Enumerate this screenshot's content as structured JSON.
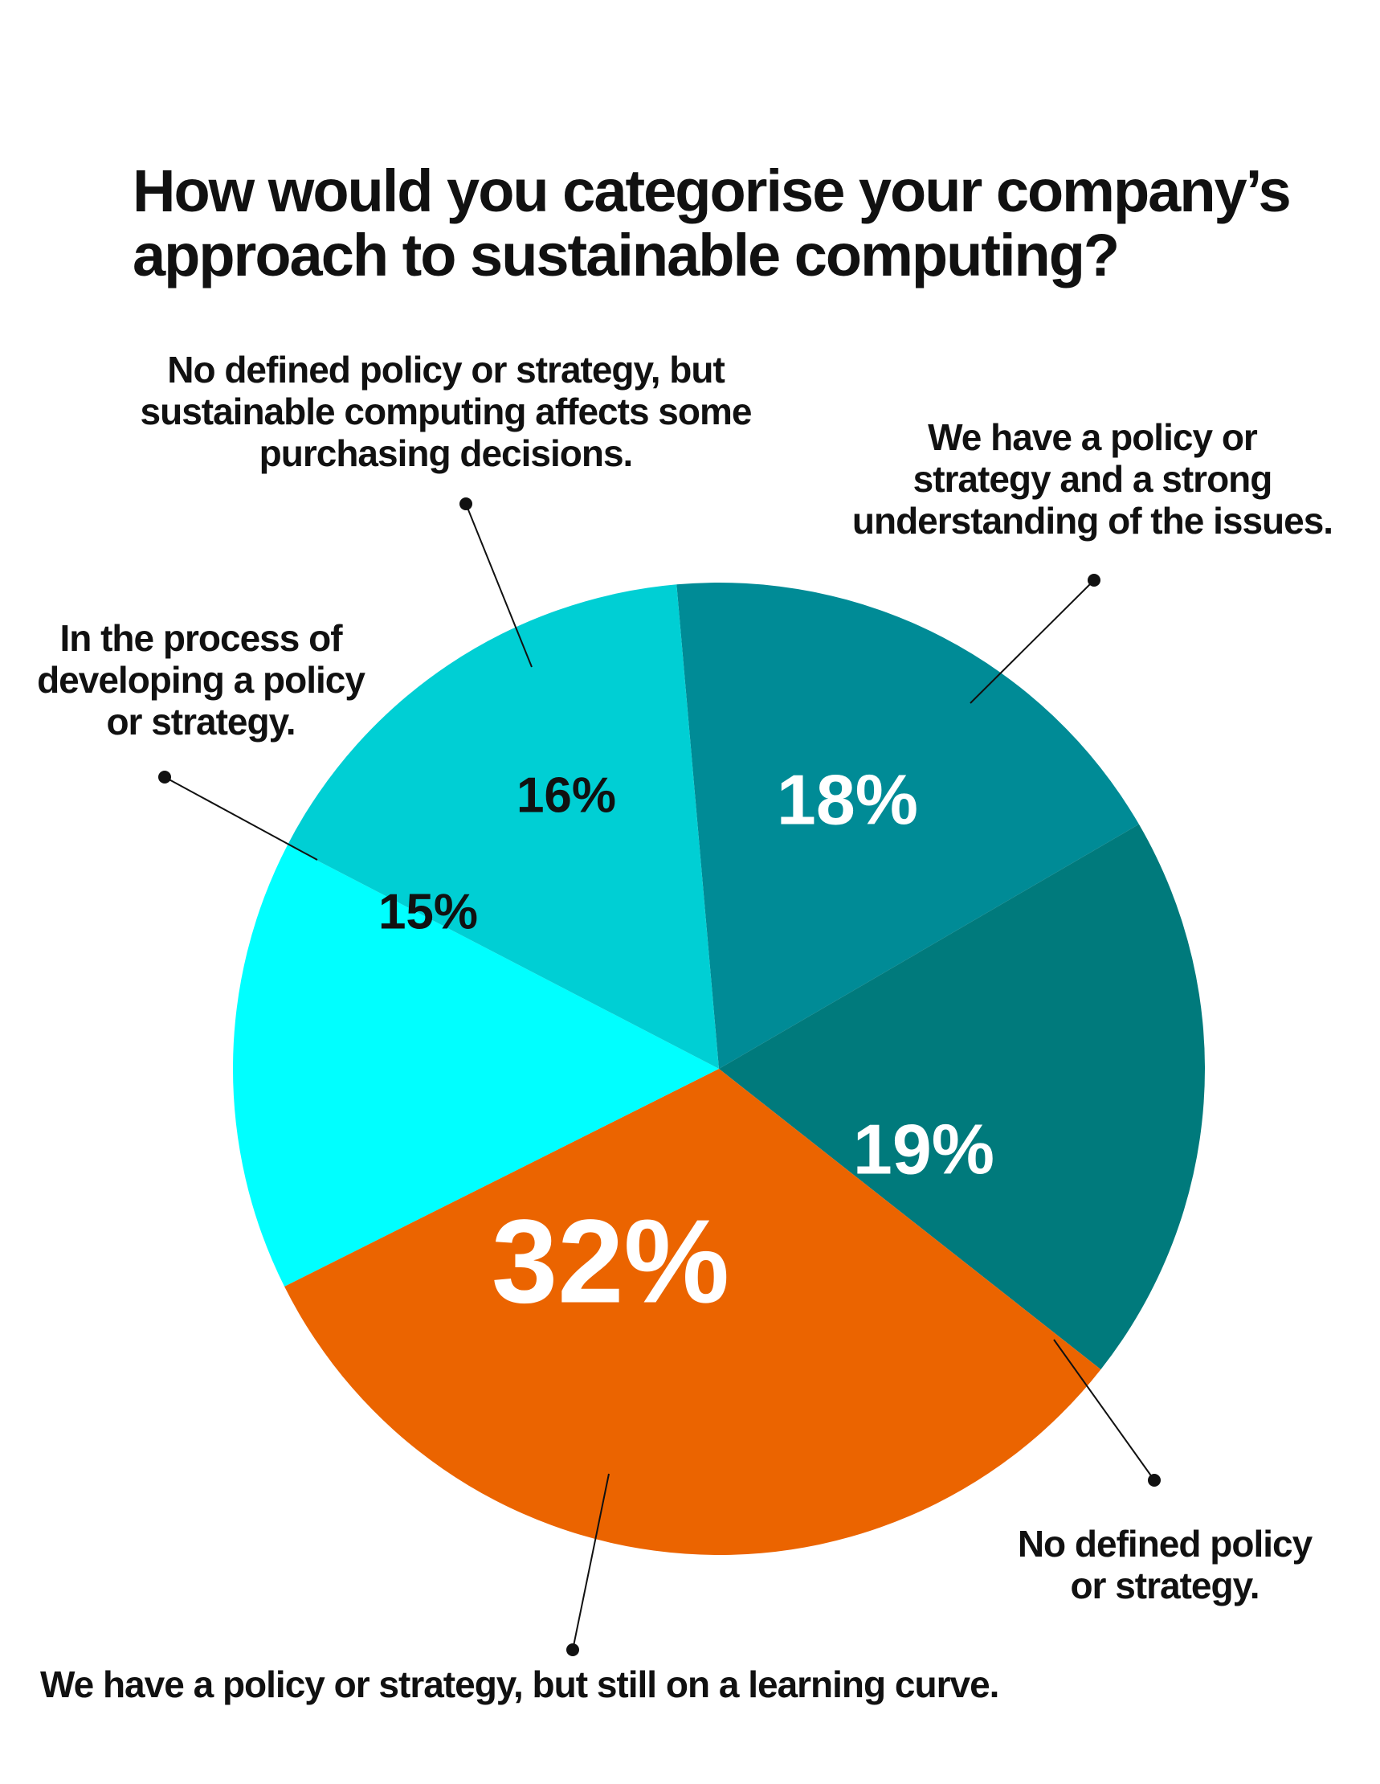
{
  "chart_data": {
    "type": "pie",
    "title": "How would you categorise your company’s\napproach to sustainable computing?",
    "start_angle_deg": -5,
    "direction": "clockwise",
    "slices": [
      {
        "name": "We have a policy or\nstrategy and a strong\nunderstanding of the issues.",
        "value": 18,
        "label": "18%",
        "color": "#008b96",
        "label_color": "#ffffff"
      },
      {
        "name": "No defined policy\nor strategy.",
        "value": 19,
        "label": "19%",
        "color": "#007a7c",
        "label_color": "#ffffff"
      },
      {
        "name": "We have a policy or strategy, but still on a learning curve.",
        "value": 32,
        "label": "32%",
        "color": "#eb6400",
        "label_color": "#ffffff"
      },
      {
        "name": "In the process of\ndeveloping a policy\nor strategy.",
        "value": 15,
        "label": "15%",
        "color": "#00ffff",
        "label_color": "#111111"
      },
      {
        "name": "No defined policy or strategy, but\nsustainable computing affects some\npurchasing decisions.",
        "value": 16,
        "label": "16%",
        "color": "#00cfd4",
        "label_color": "#111111"
      }
    ]
  }
}
